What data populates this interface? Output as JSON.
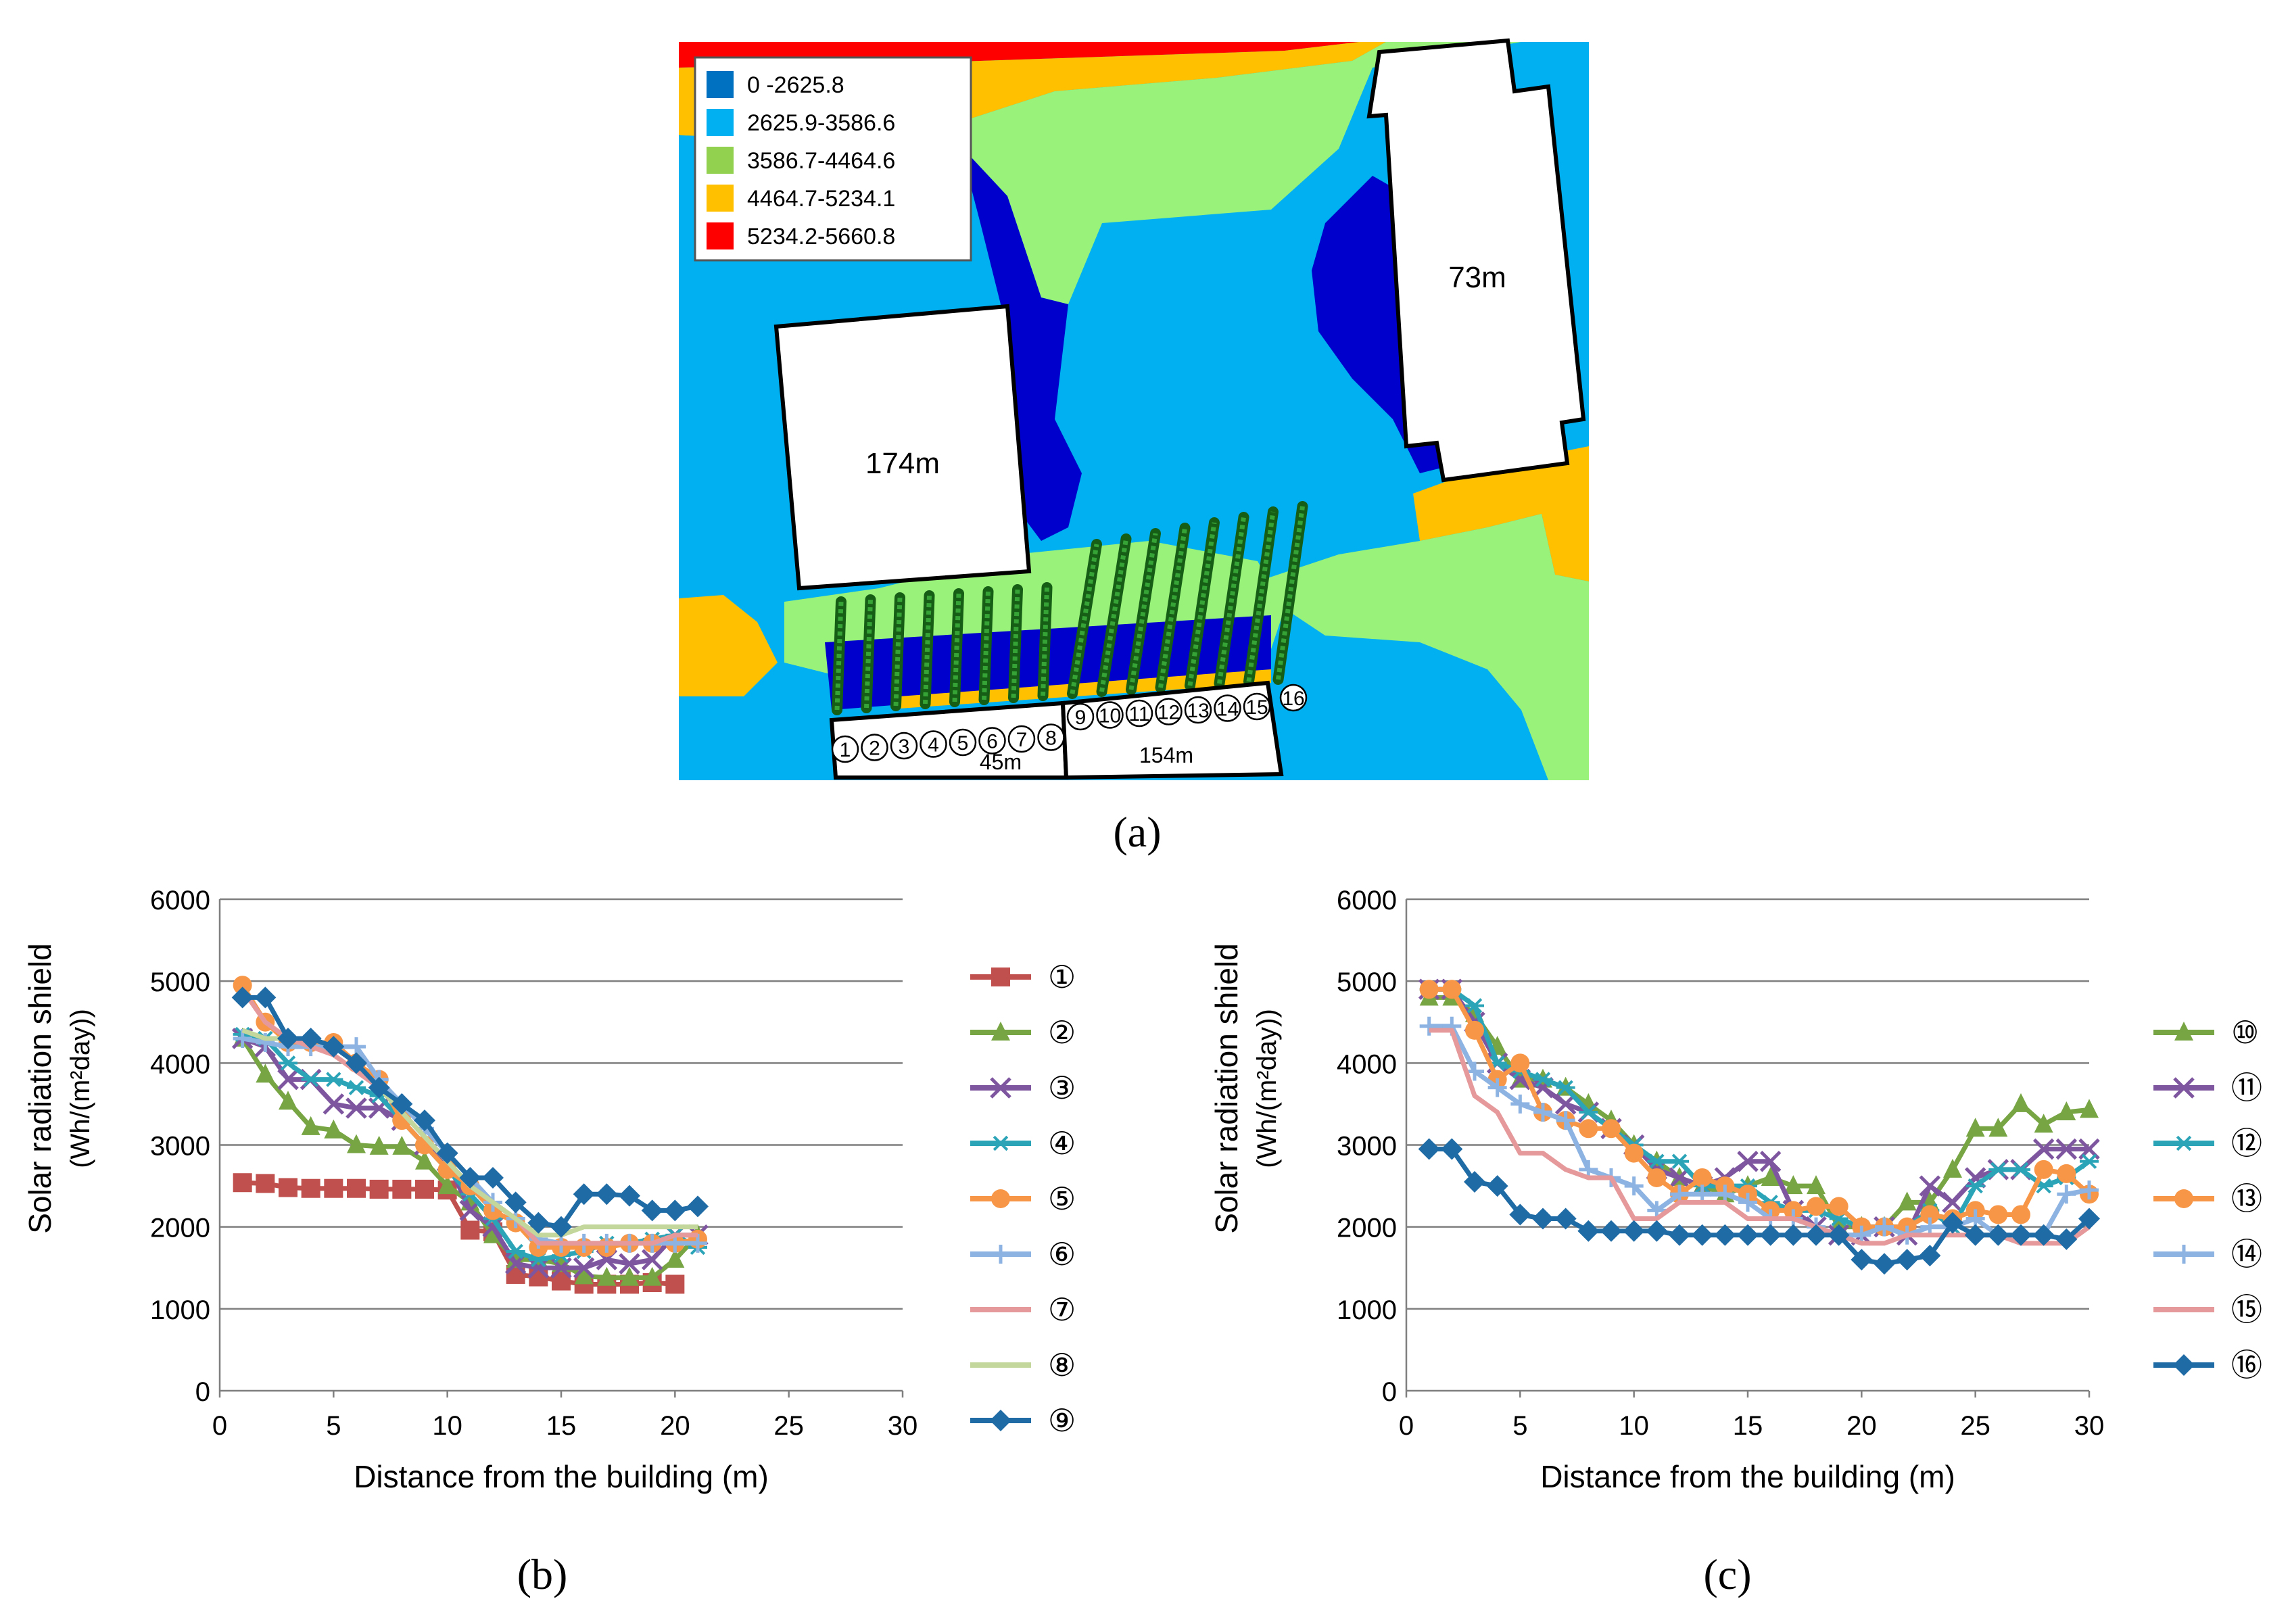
{
  "panel_labels": {
    "a": "(a)",
    "b": "(b)",
    "c": "(c)"
  },
  "map": {
    "legend": [
      {
        "label": "0    -2625.8",
        "color": "#0070C0"
      },
      {
        "label": "2625.9-3586.6",
        "color": "#00B0F0"
      },
      {
        "label": "3586.7-4464.6",
        "color": "#92D050"
      },
      {
        "label": "4464.7-5234.1",
        "color": "#FFC000"
      },
      {
        "label": "5234.2-5660.8",
        "color": "#FF0000"
      }
    ],
    "zone_colors": {
      "darkblue": "#0000CC",
      "lightblue": "#00B0F0",
      "green": "#99F27A",
      "yellow": "#FFC000",
      "red": "#FF0000"
    },
    "buildings": {
      "left": "174m",
      "right": "73m",
      "bottom_left": "45m",
      "bottom_right": "154m"
    },
    "points": [
      "①",
      "②",
      "③",
      "④",
      "⑤",
      "⑥",
      "⑦",
      "⑧",
      "⑨",
      "⑩",
      "⑪",
      "⑫",
      "⑬",
      "⑭",
      "⑮",
      "⑯"
    ]
  },
  "chart_data": [
    {
      "type": "line",
      "ylabel_line1": "Solar radiation shield",
      "ylabel_line2": "(Wh/(m²day))",
      "xlabel": "Distance from the building (m)",
      "xlim": [
        0,
        30
      ],
      "ylim": [
        0,
        6000
      ],
      "xticks": [
        0,
        5,
        10,
        15,
        20,
        25,
        30
      ],
      "yticks": [
        0,
        1000,
        2000,
        3000,
        4000,
        5000,
        6000
      ],
      "grid": true,
      "legend_position": "right",
      "series": [
        {
          "name": "①",
          "color": "#C0504D",
          "marker": "square",
          "values": [
            2540,
            2530,
            2480,
            2470,
            2470,
            2470,
            2460,
            2460,
            2460,
            2450,
            1960,
            1940,
            1420,
            1390,
            1340,
            1300,
            1300,
            1300,
            1320,
            1300
          ]
        },
        {
          "name": "②",
          "color": "#77A543",
          "marker": "triangle",
          "values": [
            4300,
            3860,
            3530,
            3220,
            3180,
            3000,
            2980,
            2980,
            2800,
            2500,
            2300,
            1900,
            1600,
            1600,
            1550,
            1400,
            1380,
            1380,
            1380,
            1600,
            1900
          ]
        },
        {
          "name": "③",
          "color": "#7E56A0",
          "marker": "x",
          "values": [
            4300,
            4200,
            3800,
            3800,
            3500,
            3450,
            3450,
            3300,
            3000,
            2800,
            2200,
            2000,
            1550,
            1500,
            1500,
            1500,
            1600,
            1550,
            1600,
            1900,
            1900
          ]
        },
        {
          "name": "④",
          "color": "#2CA4B8",
          "marker": "star",
          "values": [
            4350,
            4300,
            4000,
            3800,
            3800,
            3700,
            3600,
            3300,
            3000,
            2700,
            2400,
            2100,
            1700,
            1600,
            1650,
            1700,
            1800,
            1800,
            1850,
            1900,
            1750
          ]
        },
        {
          "name": "⑤",
          "color": "#F79646",
          "marker": "circle",
          "values": [
            4950,
            4500,
            4250,
            4250,
            4250,
            4000,
            3800,
            3300,
            3000,
            2700,
            2500,
            2200,
            2050,
            1750,
            1750,
            1750,
            1750,
            1800,
            1800,
            1800,
            1850
          ]
        },
        {
          "name": "⑥",
          "color": "#8DB3E2",
          "marker": "plus",
          "values": [
            4300,
            4250,
            4200,
            4200,
            4200,
            4200,
            3800,
            3500,
            3200,
            2900,
            2600,
            2300,
            2100,
            1850,
            1800,
            1800,
            1800,
            1800,
            1800,
            1800,
            1800
          ]
        },
        {
          "name": "⑦",
          "color": "#E6999A",
          "marker": "none",
          "values": [
            4900,
            4500,
            4300,
            4200,
            4100,
            3900,
            3700,
            3400,
            3100,
            2800,
            2500,
            2300,
            2100,
            1800,
            1800,
            1800,
            1800,
            1800,
            1800,
            1900,
            1900
          ]
        },
        {
          "name": "⑧",
          "color": "#C3D69B",
          "marker": "none",
          "values": [
            4400,
            4300,
            4300,
            4300,
            4200,
            4000,
            3700,
            3400,
            3100,
            2800,
            2500,
            2300,
            2100,
            1900,
            1900,
            2000,
            2000,
            2000,
            2000,
            2000,
            2000
          ]
        },
        {
          "name": "⑨",
          "color": "#1F6BA5",
          "marker": "diamond",
          "values": [
            4800,
            4800,
            4300,
            4300,
            4200,
            4000,
            3700,
            3500,
            3300,
            2900,
            2600,
            2600,
            2300,
            2050,
            2000,
            2400,
            2400,
            2380,
            2200,
            2200,
            2250
          ]
        }
      ]
    },
    {
      "type": "line",
      "ylabel_line1": "Solar radiation shield",
      "ylabel_line2": "(Wh/(m²day))",
      "xlabel": "Distance from the building (m)",
      "xlim": [
        0,
        30
      ],
      "ylim": [
        0,
        6000
      ],
      "xticks": [
        0,
        5,
        10,
        15,
        20,
        25,
        30
      ],
      "yticks": [
        0,
        1000,
        2000,
        3000,
        4000,
        5000,
        6000
      ],
      "grid": true,
      "legend_position": "right",
      "series": [
        {
          "name": "⑩",
          "color": "#77A543",
          "marker": "triangle",
          "values": [
            4800,
            4800,
            4600,
            4200,
            3800,
            3800,
            3700,
            3500,
            3300,
            3000,
            2800,
            2600,
            2500,
            2400,
            2500,
            2600,
            2500,
            2500,
            2000,
            2000,
            2000,
            2300,
            2300,
            2700,
            3200,
            3200,
            3500,
            3250,
            3400,
            3430
          ]
        },
        {
          "name": "⑪",
          "color": "#7E56A0",
          "marker": "x",
          "values": [
            4900,
            4900,
            4500,
            4000,
            3800,
            3700,
            3500,
            3400,
            3200,
            3000,
            2700,
            2600,
            2500,
            2600,
            2800,
            2800,
            2200,
            2000,
            1900,
            1900,
            2000,
            1900,
            2500,
            2300,
            2600,
            2700,
            2700,
            2950,
            2950,
            2950
          ]
        },
        {
          "name": "⑫",
          "color": "#2CA4B8",
          "marker": "star",
          "values": [
            4900,
            4900,
            4700,
            4000,
            3900,
            3800,
            3700,
            3400,
            3200,
            3000,
            2800,
            2800,
            2500,
            2500,
            2500,
            2300,
            2200,
            2200,
            2100,
            2000,
            2000,
            2000,
            2200,
            2000,
            2500,
            2700,
            2700,
            2500,
            2600,
            2800
          ]
        },
        {
          "name": "⑬",
          "color": "#F79646",
          "marker": "circle",
          "values": [
            4900,
            4900,
            4400,
            3800,
            4000,
            3400,
            3300,
            3200,
            3200,
            2900,
            2600,
            2400,
            2600,
            2500,
            2400,
            2200,
            2200,
            2250,
            2250,
            2000,
            2000,
            2000,
            2150,
            2100,
            2200,
            2150,
            2150,
            2700,
            2650,
            2400
          ]
        },
        {
          "name": "⑭",
          "color": "#8DB3E2",
          "marker": "plus",
          "values": [
            4450,
            4450,
            3900,
            3700,
            3500,
            3400,
            3300,
            2700,
            2600,
            2500,
            2200,
            2400,
            2400,
            2400,
            2300,
            2100,
            2100,
            2000,
            1900,
            1900,
            2000,
            1900,
            2000,
            2000,
            2100,
            1900,
            1900,
            1900,
            2400,
            2450
          ]
        },
        {
          "name": "⑮",
          "color": "#E6999A",
          "marker": "none",
          "values": [
            4400,
            4400,
            3600,
            3400,
            2900,
            2900,
            2700,
            2600,
            2600,
            2100,
            2100,
            2300,
            2300,
            2300,
            2100,
            2100,
            2100,
            2000,
            1900,
            1800,
            1800,
            1900,
            1900,
            1900,
            1900,
            1900,
            1800,
            1800,
            1800,
            2000
          ]
        },
        {
          "name": "⑯",
          "color": "#1F6BA5",
          "marker": "diamond",
          "values": [
            2950,
            2950,
            2550,
            2500,
            2150,
            2100,
            2100,
            1950,
            1950,
            1950,
            1950,
            1900,
            1900,
            1900,
            1900,
            1900,
            1900,
            1900,
            1900,
            1600,
            1550,
            1600,
            1650,
            2050,
            1900,
            1900,
            1900,
            1900,
            1850,
            2100
          ]
        }
      ]
    }
  ]
}
